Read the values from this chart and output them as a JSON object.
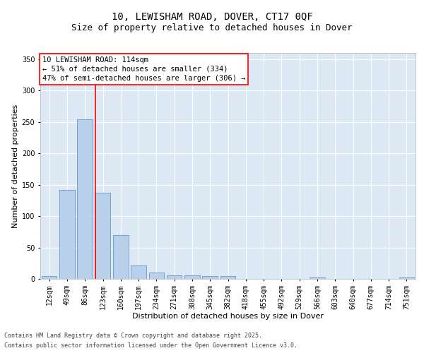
{
  "title_line1": "10, LEWISHAM ROAD, DOVER, CT17 0QF",
  "title_line2": "Size of property relative to detached houses in Dover",
  "xlabel": "Distribution of detached houses by size in Dover",
  "ylabel": "Number of detached properties",
  "categories": [
    "12sqm",
    "49sqm",
    "86sqm",
    "123sqm",
    "160sqm",
    "197sqm",
    "234sqm",
    "271sqm",
    "308sqm",
    "345sqm",
    "382sqm",
    "418sqm",
    "455sqm",
    "492sqm",
    "529sqm",
    "566sqm",
    "603sqm",
    "640sqm",
    "677sqm",
    "714sqm",
    "751sqm"
  ],
  "values": [
    4,
    142,
    254,
    137,
    70,
    21,
    10,
    6,
    6,
    5,
    5,
    0,
    0,
    0,
    0,
    2,
    0,
    0,
    0,
    0,
    2
  ],
  "bar_color": "#b8d0ea",
  "bar_edge_color": "#6699cc",
  "vline_color": "red",
  "vline_x_index": 2.57,
  "annotation_text": "10 LEWISHAM ROAD: 114sqm\n← 51% of detached houses are smaller (334)\n47% of semi-detached houses are larger (306) →",
  "annotation_box_facecolor": "white",
  "annotation_box_edgecolor": "red",
  "ylim": [
    0,
    360
  ],
  "yticks": [
    0,
    50,
    100,
    150,
    200,
    250,
    300,
    350
  ],
  "bg_color": "#dce9f5",
  "footer_line1": "Contains HM Land Registry data © Crown copyright and database right 2025.",
  "footer_line2": "Contains public sector information licensed under the Open Government Licence v3.0.",
  "title_fontsize": 10,
  "subtitle_fontsize": 9,
  "ylabel_fontsize": 8,
  "xlabel_fontsize": 8,
  "tick_fontsize": 7,
  "annotation_fontsize": 7.5,
  "footer_fontsize": 6
}
